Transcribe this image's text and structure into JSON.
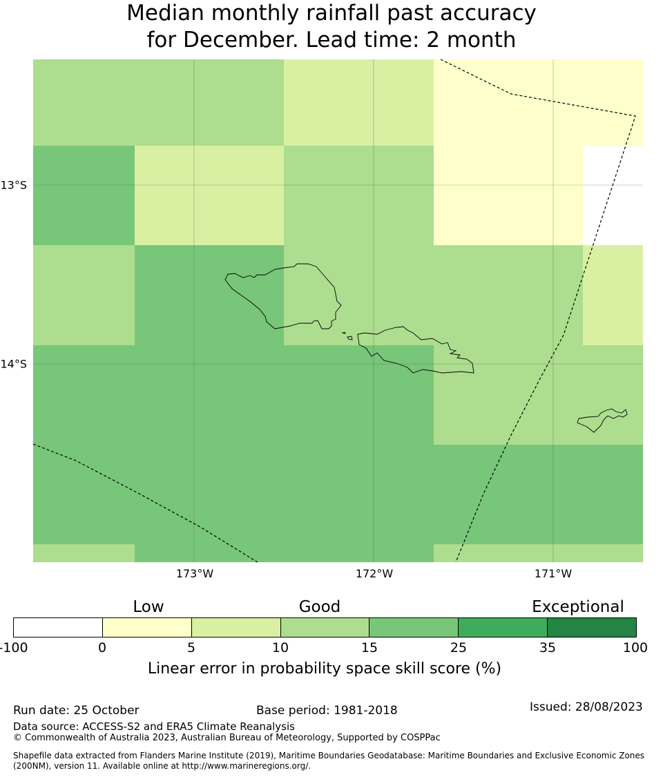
{
  "title": {
    "line1": "Median monthly rainfall past accuracy",
    "line2": "for December. Lead time: 2 month"
  },
  "map": {
    "lon_labels": [
      "173°W",
      "172°W",
      "171°W"
    ],
    "lat_labels": [
      "13°S",
      "14°S"
    ],
    "features": [
      "skill-grid",
      "coastlines",
      "maritime-boundaries",
      "graticule"
    ],
    "grid_rows": [
      [
        "10-15",
        "10-15",
        "5-10",
        "0-5"
      ],
      [
        "15-25",
        "5-10",
        "10-15",
        "0-5",
        "none"
      ],
      [
        "10-15",
        "15-25",
        "10-15",
        "5-10"
      ],
      [
        "15-25",
        "10-15"
      ],
      [
        "15-25"
      ],
      [
        "10-15",
        "15-25",
        "10-15"
      ]
    ]
  },
  "legend": {
    "categories": [
      "Low",
      "Good",
      "Exceptional"
    ],
    "ticks": [
      "-100",
      "0",
      "5",
      "10",
      "15",
      "25",
      "35",
      "100"
    ],
    "colors": [
      "#ffffff",
      "#ffffcc",
      "#d9f0a3",
      "#addd8e",
      "#78c679",
      "#41ab5d",
      "#238443"
    ],
    "label": "Linear error in probability space skill score (%)"
  },
  "footer": {
    "run_date": "Run date: 25 October",
    "base_period": "Base period: 1981-2018",
    "issued": "Issued: 28/08/2023",
    "data_source": "Data source: ACCESS-S2 and ERA5 Climate Reanalysis",
    "copyright": "© Commonwealth of Australia 2023, Australian Bureau of Meteorology, Supported by COSPPac",
    "shapefile_line1": "Shapefile data extracted from Flanders Marine Institute (2019), Maritime Boundaries Geodatabase: Maritime Boundaries and Exclusive Economic Zones",
    "shapefile_line2": "(200NM), version 11. Available online at http://www.marineregions.org/."
  }
}
